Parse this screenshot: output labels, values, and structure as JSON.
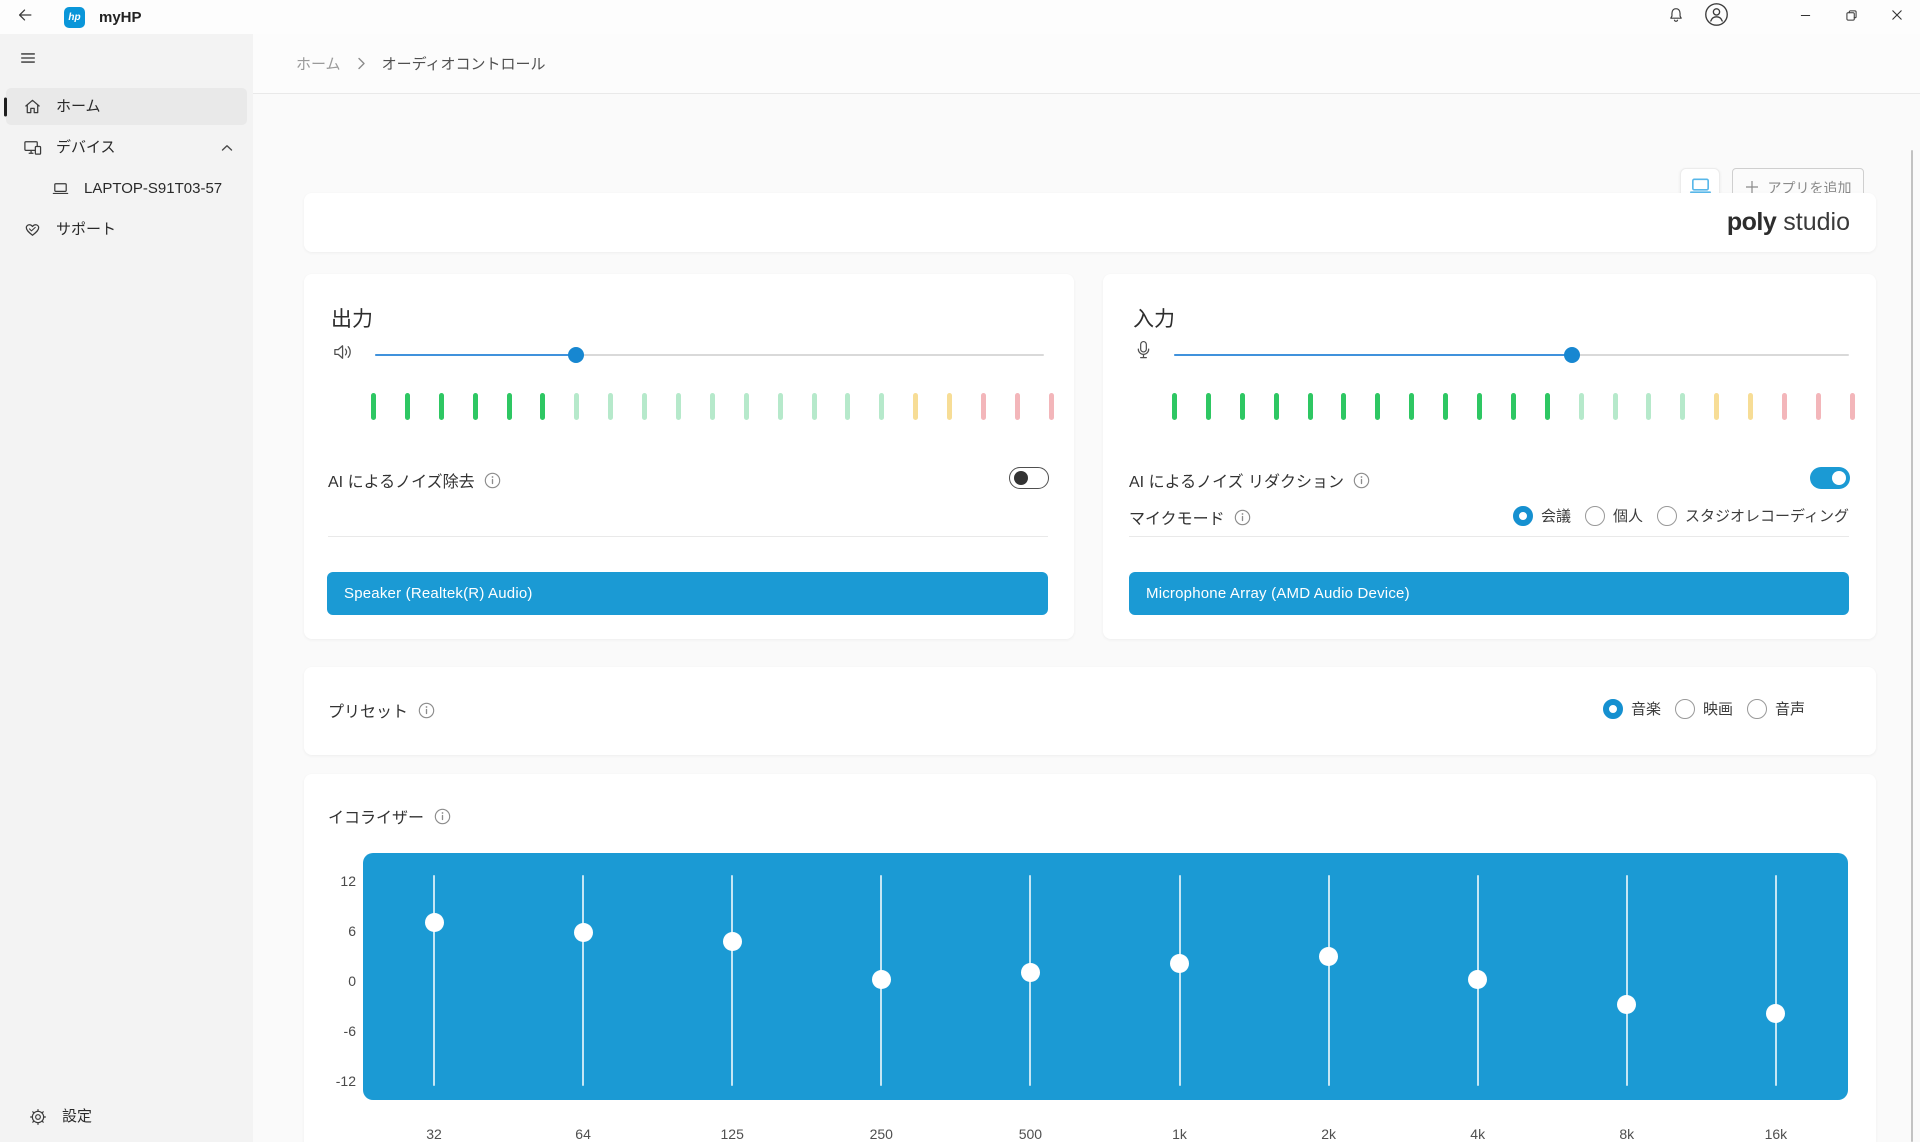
{
  "window": {
    "app_title": "myHP"
  },
  "sidebar": {
    "items": [
      {
        "id": "home",
        "icon": "home",
        "label": "ホーム",
        "selected": true,
        "indent": false,
        "chevron": null
      },
      {
        "id": "devices",
        "icon": "devices",
        "label": "デバイス",
        "selected": false,
        "indent": false,
        "chevron": "up"
      },
      {
        "id": "device-laptop",
        "icon": "laptop",
        "label": "LAPTOP-S91T03-57",
        "selected": false,
        "indent": true,
        "chevron": null
      },
      {
        "id": "support",
        "icon": "support",
        "label": "サポート",
        "selected": false,
        "indent": false,
        "chevron": null
      }
    ],
    "footer_item": {
      "id": "settings",
      "icon": "gear",
      "label": "設定"
    }
  },
  "breadcrumb": {
    "items": [
      {
        "label": "ホーム"
      },
      {
        "label": "オーディオコントロール"
      }
    ]
  },
  "toolbar": {
    "add_app_label": "アプリを追加"
  },
  "brand": {
    "bold": "poly",
    "light": "studio"
  },
  "output": {
    "title": "出力",
    "volume_percent": 30,
    "meter_segments": [
      {
        "color": "green-on",
        "count": 6
      },
      {
        "color": "green-off",
        "count": 10
      },
      {
        "color": "yellow-off",
        "count": 2
      },
      {
        "color": "red-off",
        "count": 3
      }
    ],
    "ai_label": "AI によるノイズ除去",
    "ai_enabled": false,
    "device_label": "Speaker (Realtek(R) Audio)"
  },
  "input": {
    "title": "入力",
    "volume_percent": 59,
    "meter_segments": [
      {
        "color": "green-on",
        "count": 12
      },
      {
        "color": "green-off",
        "count": 4
      },
      {
        "color": "yellow-off",
        "count": 2
      },
      {
        "color": "red-off",
        "count": 3
      }
    ],
    "ai_label": "AI によるノイズ リダクション",
    "ai_enabled": true,
    "mic_mode_label": "マイクモード",
    "mic_modes": [
      {
        "label": "会議",
        "selected": true
      },
      {
        "label": "個人",
        "selected": false
      },
      {
        "label": "スタジオレコーディング",
        "selected": false
      }
    ],
    "device_label": "Microphone Array (AMD Audio Device)"
  },
  "preset": {
    "label": "プリセット",
    "options": [
      {
        "label": "音楽",
        "selected": true
      },
      {
        "label": "映画",
        "selected": false
      },
      {
        "label": "音声",
        "selected": false
      }
    ]
  },
  "equalizer": {
    "label": "イコライザー",
    "axis_ticks": [
      12,
      6,
      0,
      -6,
      -12
    ],
    "gain_range_db": [
      -12,
      12
    ],
    "bands": [
      {
        "freq": "32",
        "gain": 7.3
      },
      {
        "freq": "64",
        "gain": 6.1
      },
      {
        "freq": "125",
        "gain": 5.0
      },
      {
        "freq": "250",
        "gain": 0.4
      },
      {
        "freq": "500",
        "gain": 1.3
      },
      {
        "freq": "1k",
        "gain": 2.3
      },
      {
        "freq": "2k",
        "gain": 3.2
      },
      {
        "freq": "4k",
        "gain": 0.4
      },
      {
        "freq": "8k",
        "gain": -2.6
      },
      {
        "freq": "16k",
        "gain": -3.6
      }
    ]
  },
  "colors": {
    "accent_blue": "#1b9ad4",
    "slider_fill_blue": "#4092dc",
    "slider_knob_blue": "#1787d1",
    "radio_blue": "#1590d0",
    "meter_green_on": "#2ec763",
    "meter_green_off": "#b6e9cb",
    "meter_yellow_off": "#f7dd96",
    "meter_red_off": "#f3b6ba",
    "hp_logo_blue": "#0a96d9"
  }
}
